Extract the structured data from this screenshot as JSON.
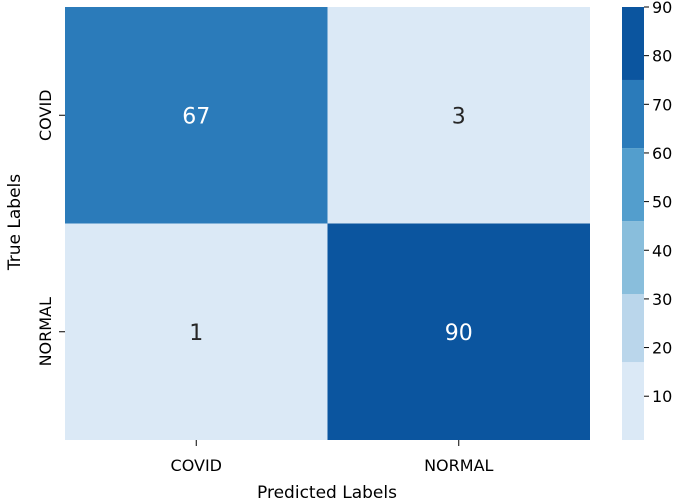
{
  "chart_data": {
    "type": "heatmap",
    "title": "",
    "xlabel": "Predicted Labels",
    "ylabel": "True Labels",
    "x_categories": [
      "COVID",
      "NORMAL"
    ],
    "y_categories": [
      "COVID",
      "NORMAL"
    ],
    "values": [
      [
        67,
        3
      ],
      [
        1,
        90
      ]
    ],
    "colorbar": {
      "range": [
        1,
        90
      ],
      "ticks": [
        10,
        20,
        30,
        40,
        50,
        60,
        70,
        80,
        90
      ],
      "bins": [
        {
          "from": 1,
          "to": 17,
          "color": "#dbe9f6"
        },
        {
          "from": 17,
          "to": 31,
          "color": "#bad6eb"
        },
        {
          "from": 31,
          "to": 46,
          "color": "#89bedc"
        },
        {
          "from": 46,
          "to": 61,
          "color": "#539ecd"
        },
        {
          "from": 61,
          "to": 75,
          "color": "#2b7bba"
        },
        {
          "from": 75,
          "to": 90,
          "color": "#0b559f"
        }
      ]
    },
    "grid": false,
    "legend": "colorbar-right"
  }
}
